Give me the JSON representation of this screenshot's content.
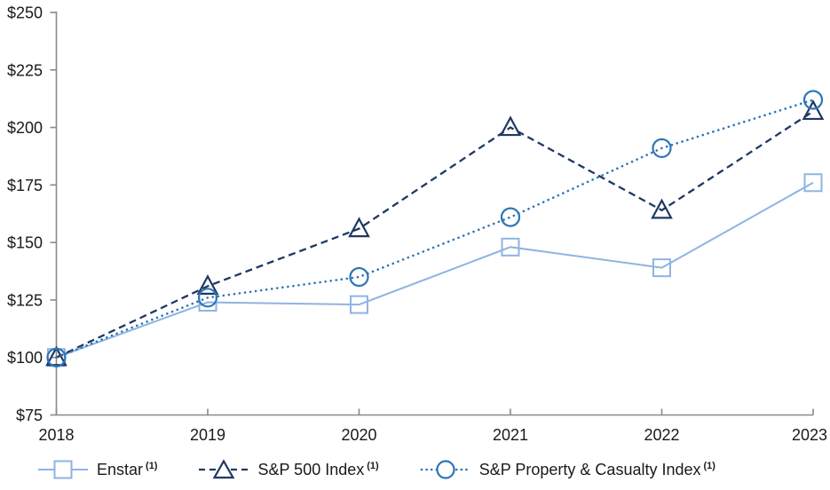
{
  "chart_data": {
    "type": "line",
    "title": "",
    "x": [
      2018,
      2019,
      2020,
      2021,
      2022,
      2023
    ],
    "xtick_labels": [
      "2018",
      "2019",
      "2020",
      "2021",
      "2022",
      "2023"
    ],
    "ylim": [
      75,
      250
    ],
    "ytick_step": 25,
    "ytick_labels": [
      "$75",
      "$100",
      "$125",
      "$150",
      "$175",
      "$200",
      "$225",
      "$250"
    ],
    "grid": false,
    "legend_position": "bottom",
    "axis_color": "#898989",
    "text_color": "#1a1a1a",
    "series": [
      {
        "name": "Enstar",
        "footnote": "(1)",
        "values": [
          100,
          124,
          123,
          148,
          139,
          176
        ],
        "color": "#8EB4E2",
        "line_style": "solid",
        "marker": "square"
      },
      {
        "name": "S&P 500 Index",
        "footnote": "(1)",
        "values": [
          100,
          131,
          156,
          200,
          164,
          207
        ],
        "color": "#1F3864",
        "line_style": "dashed",
        "marker": "triangle"
      },
      {
        "name": "S&P Property & Casualty Index",
        "footnote": "(1)",
        "values": [
          100,
          126,
          135,
          161,
          191,
          212
        ],
        "color": "#2E75B6",
        "line_style": "dotted",
        "marker": "circle"
      }
    ]
  }
}
